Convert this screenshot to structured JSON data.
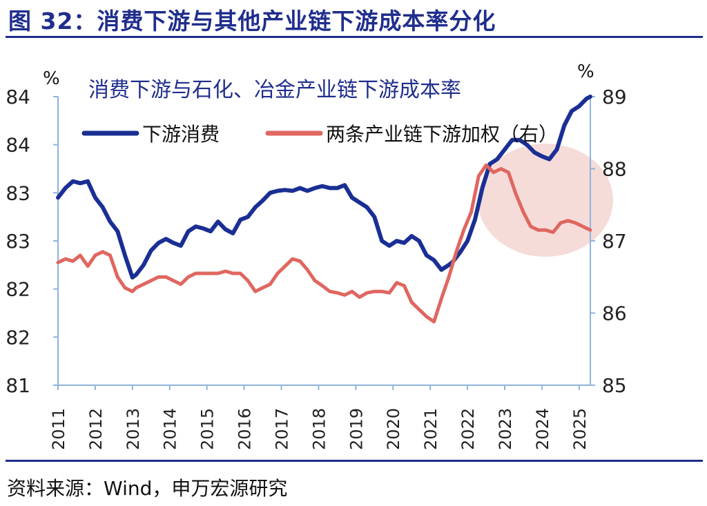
{
  "figure_title": "图 32：消费下游与其他产业链下游成本率分化",
  "source_note": "资料来源：Wind，申万宏源研究",
  "colors": {
    "title": "#1f2d8c",
    "series_left": "#1a2f94",
    "series_right": "#e06660",
    "axis": "#8fb3d9",
    "highlight": "#f3d6d2"
  },
  "chart_data": {
    "type": "line",
    "title": "消费下游与石化、冶金产业链下游成本率",
    "y_left_unit": "%",
    "y_right_unit": "%",
    "y_left_ticks": [
      "81",
      "82",
      "82",
      "83",
      "83",
      "84",
      "84"
    ],
    "y_left_range": [
      81,
      84
    ],
    "y_right_ticks": [
      "85",
      "86",
      "87",
      "88",
      "89"
    ],
    "y_right_range": [
      85,
      89
    ],
    "x_ticks": [
      "2011",
      "2012",
      "2013",
      "2014",
      "2015",
      "2016",
      "2017",
      "2018",
      "2019",
      "2020",
      "2021",
      "2022",
      "2023",
      "2024",
      "2025"
    ],
    "x_range": [
      2011.0,
      2025.3
    ],
    "legend": [
      "下游消费",
      "两条产业链下游加权（右）"
    ],
    "highlight_region": {
      "x": [
        2022.2,
        2025.3
      ],
      "note": "shaded ellipse"
    },
    "series": [
      {
        "name": "下游消费",
        "axis": "left",
        "x": [
          2011.0,
          2011.2,
          2011.4,
          2011.6,
          2011.8,
          2012.0,
          2012.2,
          2012.4,
          2012.6,
          2012.8,
          2013.0,
          2013.1,
          2013.3,
          2013.5,
          2013.7,
          2013.9,
          2014.1,
          2014.3,
          2014.5,
          2014.7,
          2014.9,
          2015.1,
          2015.3,
          2015.5,
          2015.7,
          2015.9,
          2016.1,
          2016.3,
          2016.5,
          2016.7,
          2016.9,
          2017.1,
          2017.3,
          2017.5,
          2017.7,
          2017.9,
          2018.1,
          2018.3,
          2018.5,
          2018.7,
          2018.9,
          2019.1,
          2019.3,
          2019.5,
          2019.7,
          2019.9,
          2020.1,
          2020.3,
          2020.5,
          2020.7,
          2020.9,
          2021.1,
          2021.3,
          2021.5,
          2021.6,
          2021.8,
          2022.0,
          2022.2,
          2022.4,
          2022.6,
          2022.8,
          2023.0,
          2023.2,
          2023.4,
          2023.6,
          2023.8,
          2024.0,
          2024.2,
          2024.4,
          2024.6,
          2024.8,
          2025.0,
          2025.2,
          2025.3
        ],
        "values": [
          82.95,
          83.05,
          83.12,
          83.1,
          83.12,
          82.95,
          82.85,
          82.7,
          82.6,
          82.35,
          82.12,
          82.15,
          82.25,
          82.4,
          82.48,
          82.52,
          82.48,
          82.45,
          82.6,
          82.65,
          82.63,
          82.6,
          82.7,
          82.62,
          82.58,
          82.72,
          82.75,
          82.85,
          82.92,
          83.0,
          83.02,
          83.03,
          83.02,
          83.05,
          83.02,
          83.05,
          83.07,
          83.05,
          83.05,
          83.08,
          82.95,
          82.9,
          82.85,
          82.75,
          82.5,
          82.45,
          82.5,
          82.48,
          82.55,
          82.5,
          82.35,
          82.3,
          82.2,
          82.25,
          82.28,
          82.38,
          82.5,
          82.72,
          83.05,
          83.3,
          83.35,
          83.45,
          83.55,
          83.55,
          83.5,
          83.42,
          83.38,
          83.35,
          83.45,
          83.7,
          83.85,
          83.9,
          83.98,
          84.0
        ]
      },
      {
        "name": "两条产业链下游加权（右）",
        "axis": "right",
        "x": [
          2011.0,
          2011.2,
          2011.4,
          2011.6,
          2011.8,
          2012.0,
          2012.2,
          2012.4,
          2012.6,
          2012.8,
          2013.0,
          2013.1,
          2013.3,
          2013.5,
          2013.7,
          2013.9,
          2014.1,
          2014.3,
          2014.5,
          2014.7,
          2014.9,
          2015.1,
          2015.3,
          2015.5,
          2015.7,
          2015.9,
          2016.1,
          2016.3,
          2016.5,
          2016.7,
          2016.9,
          2017.1,
          2017.3,
          2017.5,
          2017.7,
          2017.9,
          2018.1,
          2018.3,
          2018.5,
          2018.7,
          2018.9,
          2019.1,
          2019.3,
          2019.5,
          2019.7,
          2019.9,
          2020.1,
          2020.3,
          2020.5,
          2020.7,
          2020.9,
          2021.1,
          2021.3,
          2021.5,
          2021.7,
          2021.9,
          2022.1,
          2022.3,
          2022.5,
          2022.7,
          2022.9,
          2023.1,
          2023.3,
          2023.5,
          2023.7,
          2023.9,
          2024.1,
          2024.3,
          2024.5,
          2024.7,
          2024.9,
          2025.1,
          2025.3
        ],
        "values": [
          86.7,
          86.75,
          86.72,
          86.8,
          86.65,
          86.8,
          86.85,
          86.8,
          86.5,
          86.35,
          86.3,
          86.35,
          86.4,
          86.45,
          86.5,
          86.5,
          86.45,
          86.4,
          86.5,
          86.55,
          86.55,
          86.55,
          86.55,
          86.58,
          86.55,
          86.55,
          86.45,
          86.3,
          86.35,
          86.4,
          86.55,
          86.65,
          86.75,
          86.72,
          86.6,
          86.45,
          86.38,
          86.3,
          86.28,
          86.25,
          86.3,
          86.22,
          86.28,
          86.3,
          86.3,
          86.28,
          86.42,
          86.38,
          86.15,
          86.05,
          85.95,
          85.88,
          86.2,
          86.5,
          86.85,
          87.15,
          87.4,
          87.9,
          88.05,
          87.95,
          88.0,
          87.95,
          87.65,
          87.4,
          87.2,
          87.15,
          87.15,
          87.12,
          87.25,
          87.28,
          87.25,
          87.2,
          87.15
        ]
      }
    ]
  }
}
